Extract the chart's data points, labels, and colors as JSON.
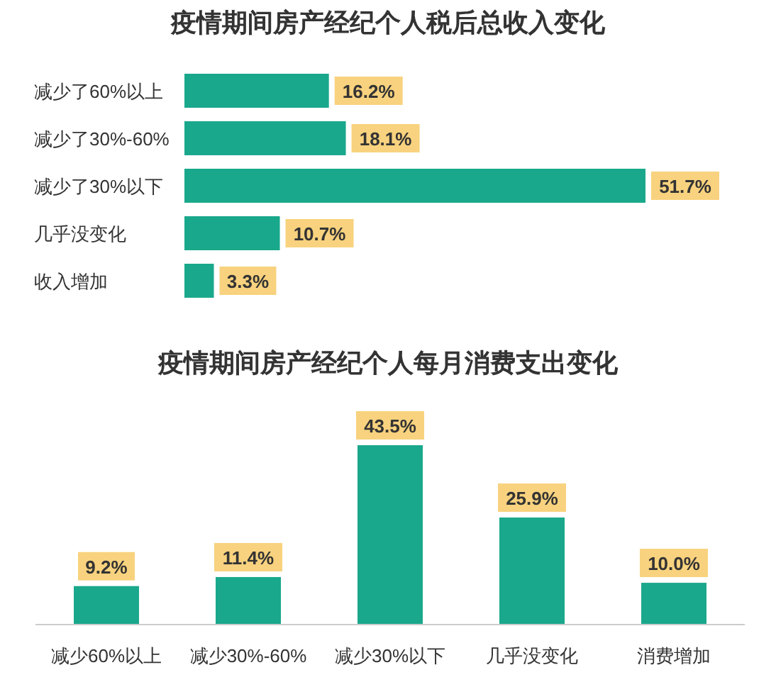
{
  "chart_data": [
    {
      "type": "bar",
      "orientation": "horizontal",
      "title": "疫情期间房产经纪个人税后总收入变化",
      "categories": [
        "减少了60%以上",
        "减少了30%-60%",
        "减少了30%以下",
        "几乎没变化",
        "收入增加"
      ],
      "values": [
        16.2,
        18.1,
        51.7,
        10.7,
        3.3
      ],
      "value_labels": [
        "16.2%",
        "18.1%",
        "51.7%",
        "10.7%",
        "3.3%"
      ],
      "color": "#1aa88c"
    },
    {
      "type": "bar",
      "title": "疫情期间房产经纪个人每月消费支出变化",
      "categories": [
        "减少60%以上",
        "减少30%-60%",
        "减少30%以下",
        "几乎没变化",
        "消费增加"
      ],
      "values": [
        9.2,
        11.4,
        43.5,
        25.9,
        10.0
      ],
      "value_labels": [
        "9.2%",
        "11.4%",
        "43.5%",
        "25.9%",
        "10.0%"
      ],
      "color": "#1aa88c"
    }
  ]
}
